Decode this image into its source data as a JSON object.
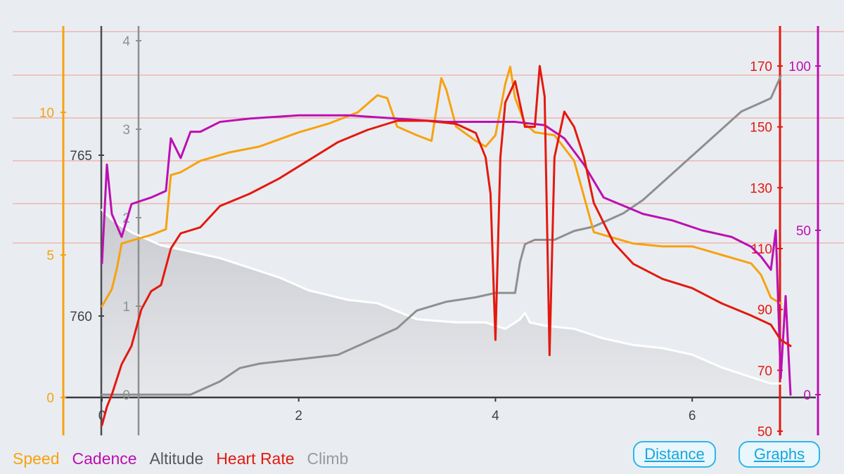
{
  "legend": [
    {
      "label": "Speed",
      "color": "#f7a20f"
    },
    {
      "label": "Cadence",
      "color": "#bd0fb2"
    },
    {
      "label": "Altitude",
      "color": "#56585c"
    },
    {
      "label": "Heart Rate",
      "color": "#e3190f"
    },
    {
      "label": "Climb",
      "color": "#9a9a9a"
    }
  ],
  "buttons": {
    "distance": "Distance",
    "graphs": "Graphs"
  },
  "chart_data": {
    "type": "line",
    "xlabel": "",
    "x_ticks": [
      "0",
      "2",
      "4",
      "6"
    ],
    "xlim": [
      0,
      7
    ],
    "grid": "horizontal",
    "axes": {
      "speed": {
        "ticks": [
          "0",
          "5",
          "10"
        ],
        "range": [
          0,
          10
        ],
        "color": "#f7a20f"
      },
      "climb": {
        "ticks": [
          "0",
          "1",
          "2",
          "3",
          "4"
        ],
        "range": [
          0,
          4
        ],
        "color": "#8f8f8f"
      },
      "altitude": {
        "ticks": [
          "760",
          "765"
        ],
        "range": [
          760,
          765
        ],
        "color": "#56585c"
      },
      "heart_rate": {
        "ticks": [
          "50",
          "70",
          "90",
          "110",
          "130",
          "150",
          "170"
        ],
        "range": [
          50,
          170
        ],
        "color": "#e3190f"
      },
      "cadence": {
        "ticks": [
          "0",
          "50",
          "100"
        ],
        "range": [
          0,
          100
        ],
        "color": "#bd0fb2"
      }
    },
    "series": [
      {
        "name": "Altitude",
        "axis": "altitude",
        "color": "#ffffff",
        "fill": "area",
        "x": [
          0,
          0.1,
          0.3,
          0.6,
          0.9,
          1.2,
          1.5,
          1.8,
          2.1,
          2.5,
          2.8,
          3.2,
          3.6,
          3.9,
          4.1,
          4.25,
          4.3,
          4.35,
          4.5,
          4.8,
          5.1,
          5.4,
          5.7,
          6.0,
          6.3,
          6.6,
          6.8,
          6.9
        ],
        "values": [
          763.3,
          763.0,
          762.6,
          762.2,
          762.0,
          761.8,
          761.5,
          761.2,
          760.8,
          760.5,
          760.4,
          759.9,
          759.8,
          759.8,
          759.6,
          759.9,
          760.1,
          759.8,
          759.7,
          759.6,
          759.3,
          759.1,
          759.0,
          758.8,
          758.4,
          758.1,
          757.9,
          757.9
        ]
      },
      {
        "name": "Climb",
        "axis": "climb",
        "color": "#8f8f8f",
        "x": [
          0,
          0.9,
          1.2,
          1.4,
          1.6,
          2.0,
          2.4,
          2.7,
          3.0,
          3.2,
          3.5,
          3.8,
          4.0,
          4.2,
          4.25,
          4.3,
          4.4,
          4.6,
          4.8,
          5.0,
          5.3,
          5.5,
          5.7,
          5.9,
          6.1,
          6.3,
          6.5,
          6.7,
          6.8,
          6.9
        ],
        "values": [
          0,
          0,
          0.15,
          0.3,
          0.35,
          0.4,
          0.45,
          0.6,
          0.75,
          0.95,
          1.05,
          1.1,
          1.15,
          1.15,
          1.5,
          1.7,
          1.75,
          1.75,
          1.85,
          1.9,
          2.05,
          2.2,
          2.4,
          2.6,
          2.8,
          3.0,
          3.2,
          3.3,
          3.35,
          3.6
        ]
      },
      {
        "name": "Speed",
        "axis": "speed",
        "color": "#f7a20f",
        "x": [
          0,
          0.1,
          0.15,
          0.2,
          0.3,
          0.5,
          0.65,
          0.7,
          0.8,
          1.0,
          1.3,
          1.6,
          2.0,
          2.3,
          2.6,
          2.8,
          2.9,
          3.0,
          3.2,
          3.35,
          3.45,
          3.5,
          3.6,
          3.8,
          3.9,
          4.0,
          4.1,
          4.15,
          4.2,
          4.3,
          4.4,
          4.6,
          4.8,
          5.0,
          5.2,
          5.4,
          5.7,
          6.0,
          6.3,
          6.6,
          6.7,
          6.8,
          6.9
        ],
        "values": [
          3.2,
          3.8,
          4.5,
          5.4,
          5.5,
          5.7,
          5.9,
          7.8,
          7.9,
          8.3,
          8.6,
          8.8,
          9.3,
          9.6,
          10.0,
          10.6,
          10.5,
          9.5,
          9.2,
          9.0,
          11.2,
          10.8,
          9.5,
          9.0,
          8.8,
          9.2,
          11.0,
          11.6,
          10.5,
          9.6,
          9.3,
          9.2,
          8.3,
          5.8,
          5.6,
          5.4,
          5.3,
          5.3,
          5.0,
          4.7,
          4.3,
          3.5,
          3.3
        ]
      },
      {
        "name": "Cadence",
        "axis": "cadence",
        "color": "#bd0fb2",
        "x": [
          0,
          0.05,
          0.1,
          0.2,
          0.3,
          0.5,
          0.65,
          0.7,
          0.8,
          0.9,
          1.0,
          1.2,
          1.5,
          2.0,
          2.5,
          3.0,
          3.5,
          4.0,
          4.2,
          4.5,
          4.7,
          4.9,
          5.1,
          5.5,
          5.8,
          6.1,
          6.4,
          6.6,
          6.7,
          6.8,
          6.85,
          6.9,
          6.95,
          7.0
        ],
        "values": [
          40,
          70,
          55,
          48,
          58,
          60,
          62,
          78,
          72,
          80,
          80,
          83,
          84,
          85,
          85,
          84,
          83,
          83,
          83,
          82,
          78,
          70,
          60,
          55,
          53,
          50,
          48,
          45,
          42,
          38,
          50,
          5,
          30,
          0
        ]
      },
      {
        "name": "Heart Rate",
        "axis": "heart_rate",
        "color": "#e3190f",
        "x": [
          0,
          0.05,
          0.1,
          0.2,
          0.3,
          0.4,
          0.5,
          0.6,
          0.7,
          0.8,
          0.9,
          1.0,
          1.2,
          1.5,
          1.8,
          2.1,
          2.4,
          2.7,
          3.0,
          3.3,
          3.6,
          3.8,
          3.9,
          3.95,
          4.0,
          4.05,
          4.1,
          4.2,
          4.3,
          4.4,
          4.45,
          4.5,
          4.55,
          4.6,
          4.7,
          4.8,
          4.9,
          5.0,
          5.2,
          5.4,
          5.7,
          6.0,
          6.3,
          6.6,
          6.8,
          6.9,
          7.0
        ],
        "values": [
          52,
          58,
          62,
          72,
          78,
          90,
          96,
          98,
          110,
          115,
          116,
          117,
          124,
          128,
          133,
          139,
          145,
          149,
          152,
          152,
          151,
          148,
          140,
          128,
          80,
          140,
          158,
          165,
          150,
          150,
          170,
          160,
          75,
          140,
          155,
          150,
          140,
          125,
          112,
          105,
          100,
          97,
          92,
          88,
          85,
          80,
          78
        ]
      }
    ]
  }
}
